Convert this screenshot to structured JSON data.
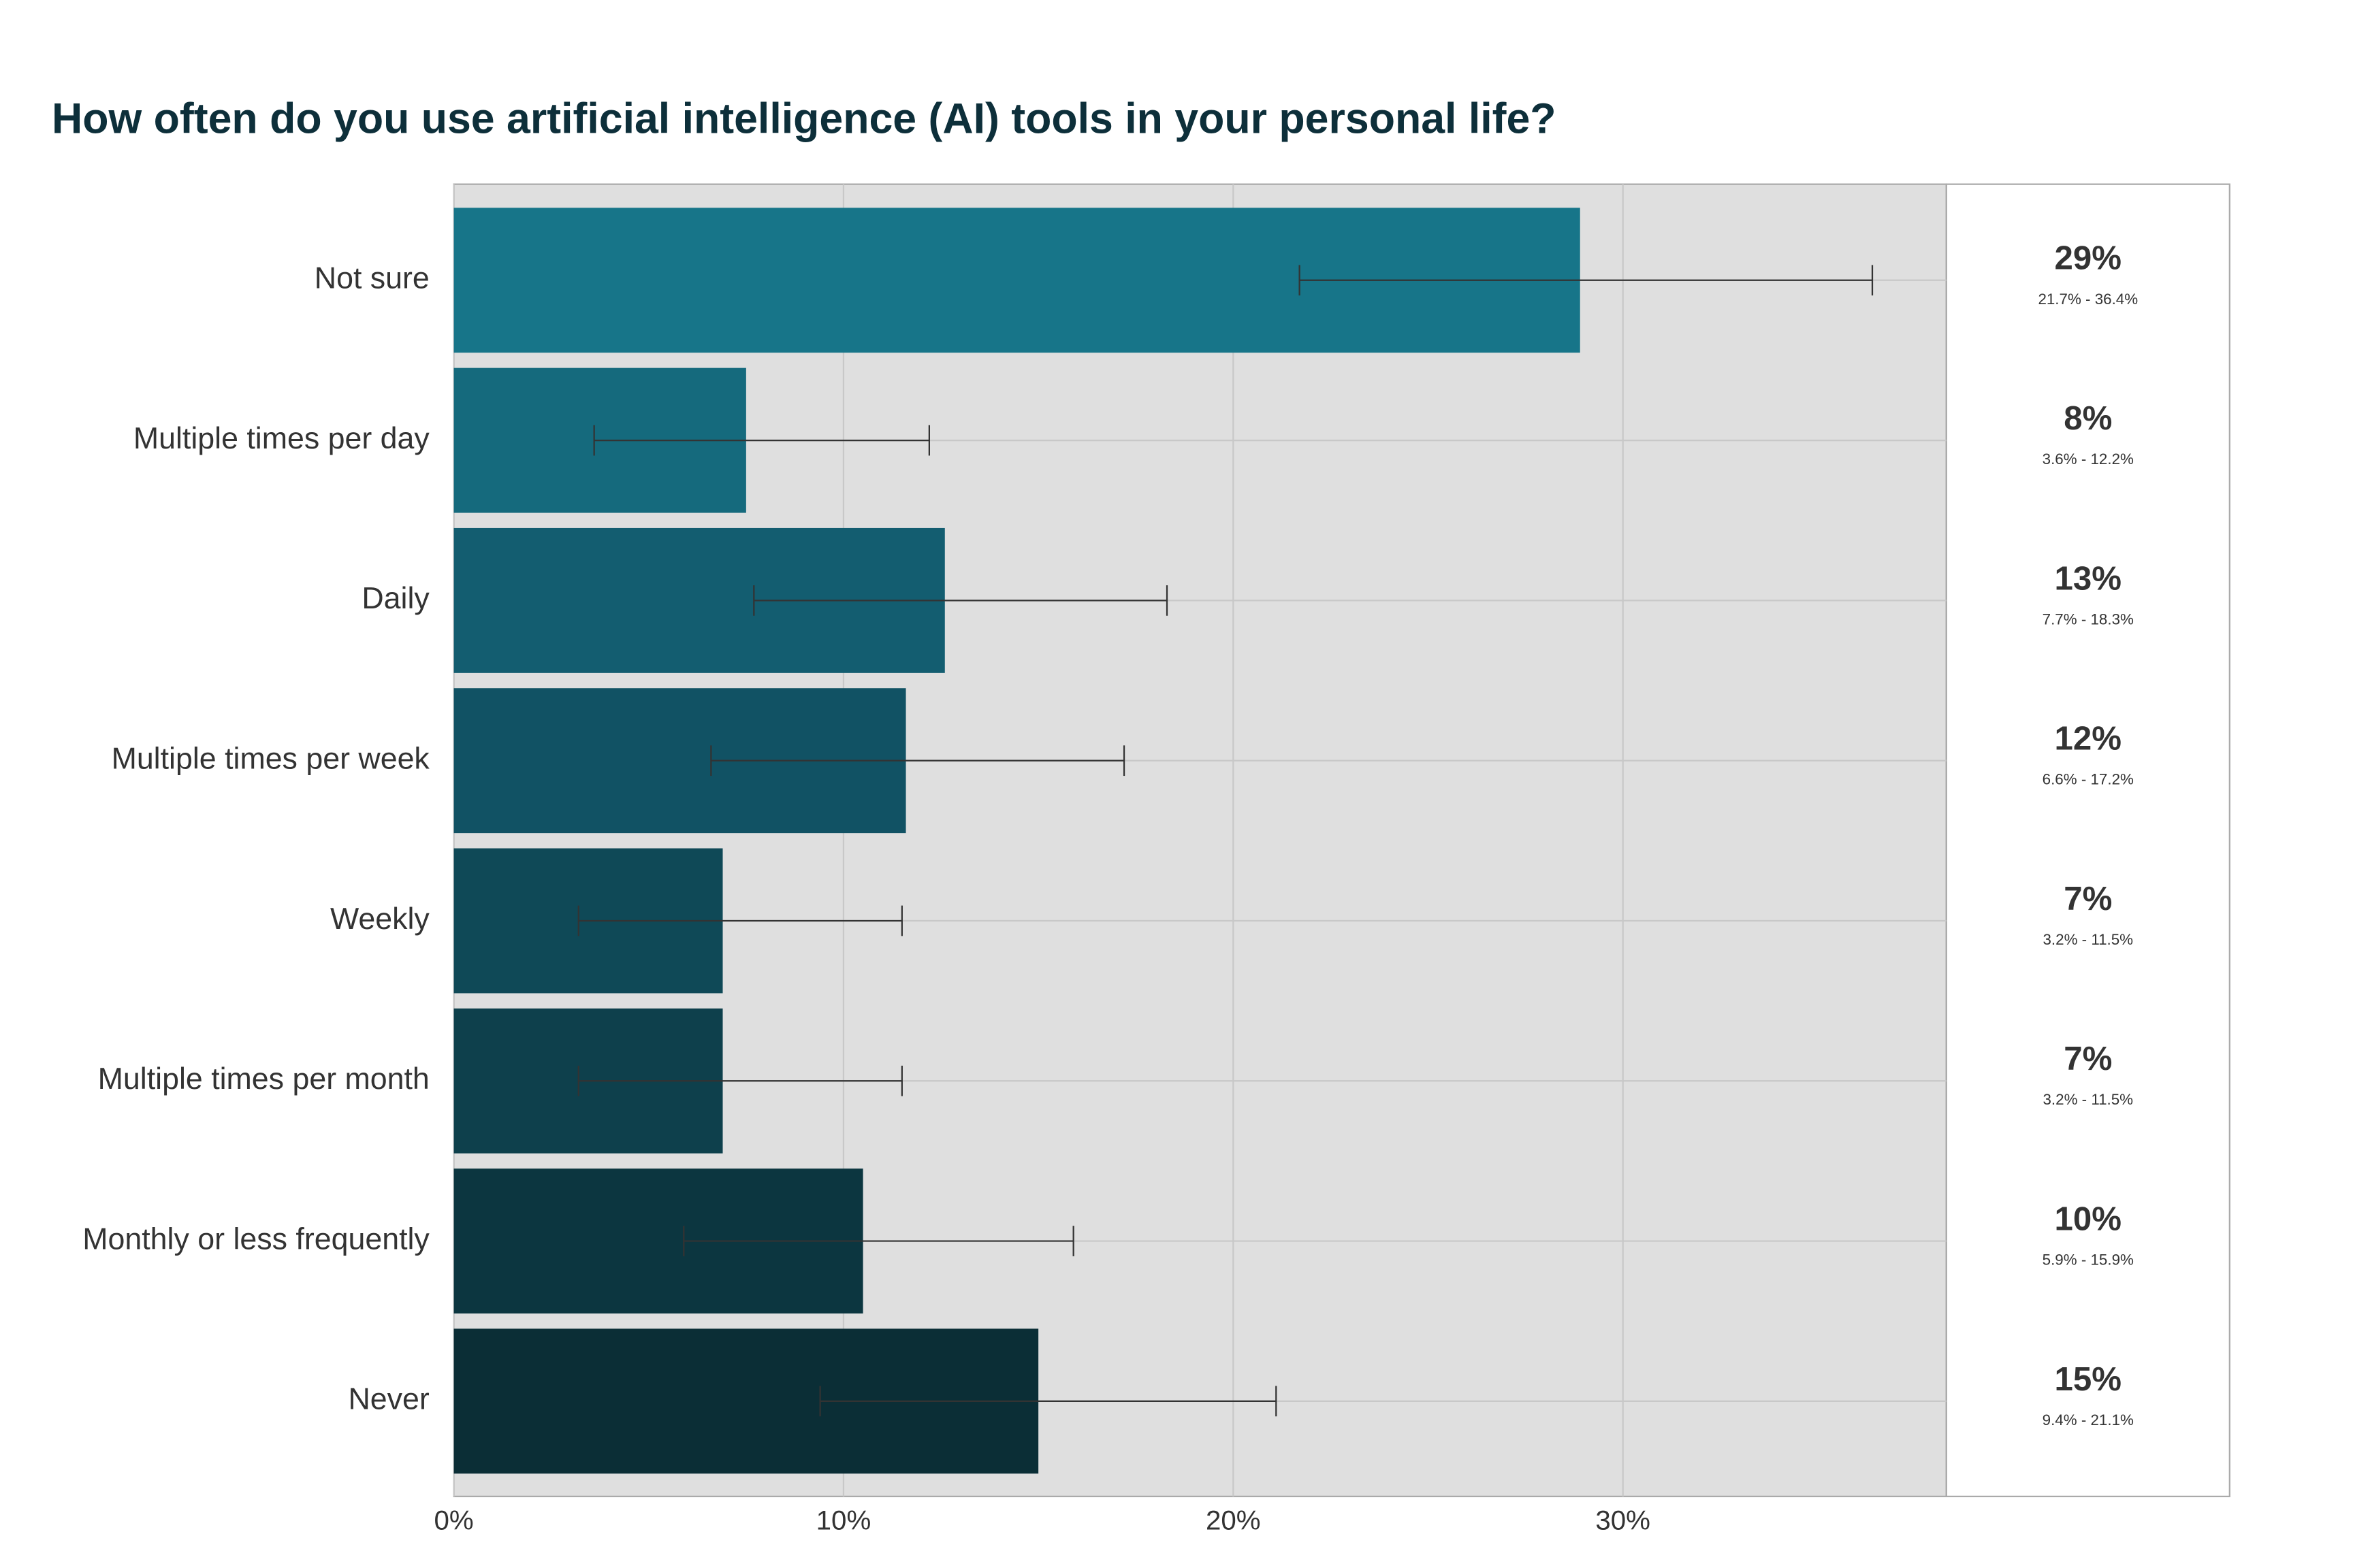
{
  "chart_data": {
    "type": "bar",
    "orientation": "horizontal",
    "title": "How often do you use artificial intelligence (AI) tools in your personal life?",
    "categories": [
      "Not sure",
      "Multiple times per day",
      "Daily",
      "Multiple times per week",
      "Weekly",
      "Multiple times per month",
      "Monthly or less frequently",
      "Never"
    ],
    "values": [
      28.9,
      7.5,
      12.6,
      11.6,
      6.9,
      6.9,
      10.5,
      15.0
    ],
    "value_labels": [
      "29%",
      "8%",
      "13%",
      "12%",
      "7%",
      "7%",
      "10%",
      "15%"
    ],
    "ci_low": [
      21.7,
      3.6,
      7.7,
      6.6,
      3.2,
      3.2,
      5.9,
      9.4
    ],
    "ci_high": [
      36.4,
      12.2,
      18.3,
      17.2,
      11.5,
      11.5,
      15.9,
      21.1
    ],
    "ci_labels": [
      "21.7% - 36.4%",
      "3.6% - 12.2%",
      "7.7% - 18.3%",
      "6.6% - 17.2%",
      "3.2% - 11.5%",
      "3.2% - 11.5%",
      "5.9% - 15.9%",
      "9.4% - 21.1%"
    ],
    "colors": [
      "#177589",
      "#156a7d",
      "#135d70",
      "#115264",
      "#0f4957",
      "#0e404c",
      "#0c3640",
      "#0b2e36"
    ],
    "xlim": [
      0,
      38.3
    ],
    "xticks": [
      {
        "value": 0,
        "label": "0%"
      },
      {
        "value": 10,
        "label": "10%"
      },
      {
        "value": 20,
        "label": "20%"
      },
      {
        "value": 30,
        "label": "30%"
      }
    ],
    "grid": true
  }
}
